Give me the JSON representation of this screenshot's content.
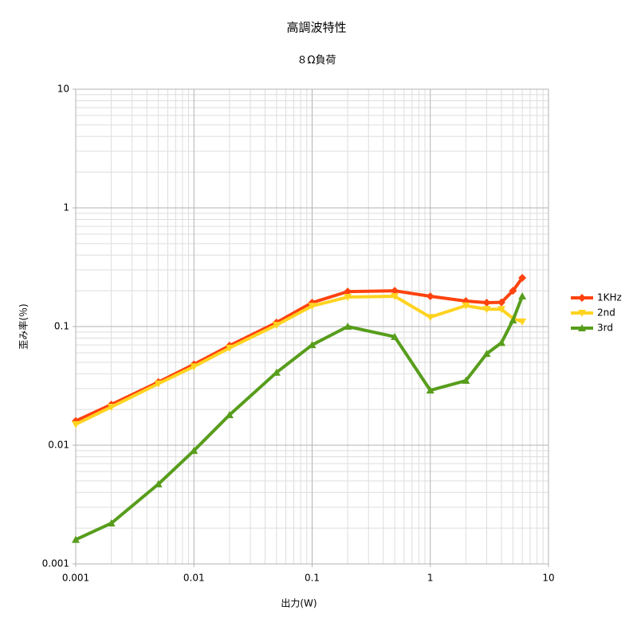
{
  "chart_data": {
    "type": "line",
    "title": "高調波特性",
    "subtitle": "８Ω負荷",
    "x_label": "出力(W)",
    "y_label": "歪み率(％)",
    "x": [
      0.001,
      0.002,
      0.005,
      0.01,
      0.02,
      0.05,
      0.1,
      0.2,
      0.5,
      1,
      2,
      3,
      4,
      5,
      6
    ],
    "series": [
      {
        "name": "1KHz",
        "color": "#ff420e",
        "marker": "diamond",
        "values": [
          0.016,
          0.022,
          0.034,
          0.048,
          0.069,
          0.108,
          0.159,
          0.197,
          0.2,
          0.18,
          0.164,
          0.159,
          0.16,
          0.2,
          0.257
        ]
      },
      {
        "name": "2nd",
        "color": "#ffd320",
        "marker": "triangle-down",
        "values": [
          0.015,
          0.021,
          0.033,
          0.046,
          0.066,
          0.103,
          0.149,
          0.177,
          0.18,
          0.12,
          0.15,
          0.14,
          0.14,
          0.117,
          0.11
        ]
      },
      {
        "name": "3rd",
        "color": "#579d1c",
        "marker": "triangle-up",
        "values": [
          0.0016,
          0.0022,
          0.0047,
          0.009,
          0.018,
          0.041,
          0.07,
          0.1,
          0.082,
          0.029,
          0.035,
          0.059,
          0.073,
          0.113,
          0.18
        ]
      }
    ],
    "xlim": [
      0.001,
      10
    ],
    "ylim": [
      0.001,
      10
    ],
    "xticks": [
      0.001,
      0.01,
      0.1,
      1,
      10
    ],
    "yticks": [
      0.001,
      0.01,
      0.1,
      1,
      10
    ],
    "xscale": "log",
    "yscale": "log",
    "grid": true,
    "minor_grid": true,
    "legend": "right"
  }
}
